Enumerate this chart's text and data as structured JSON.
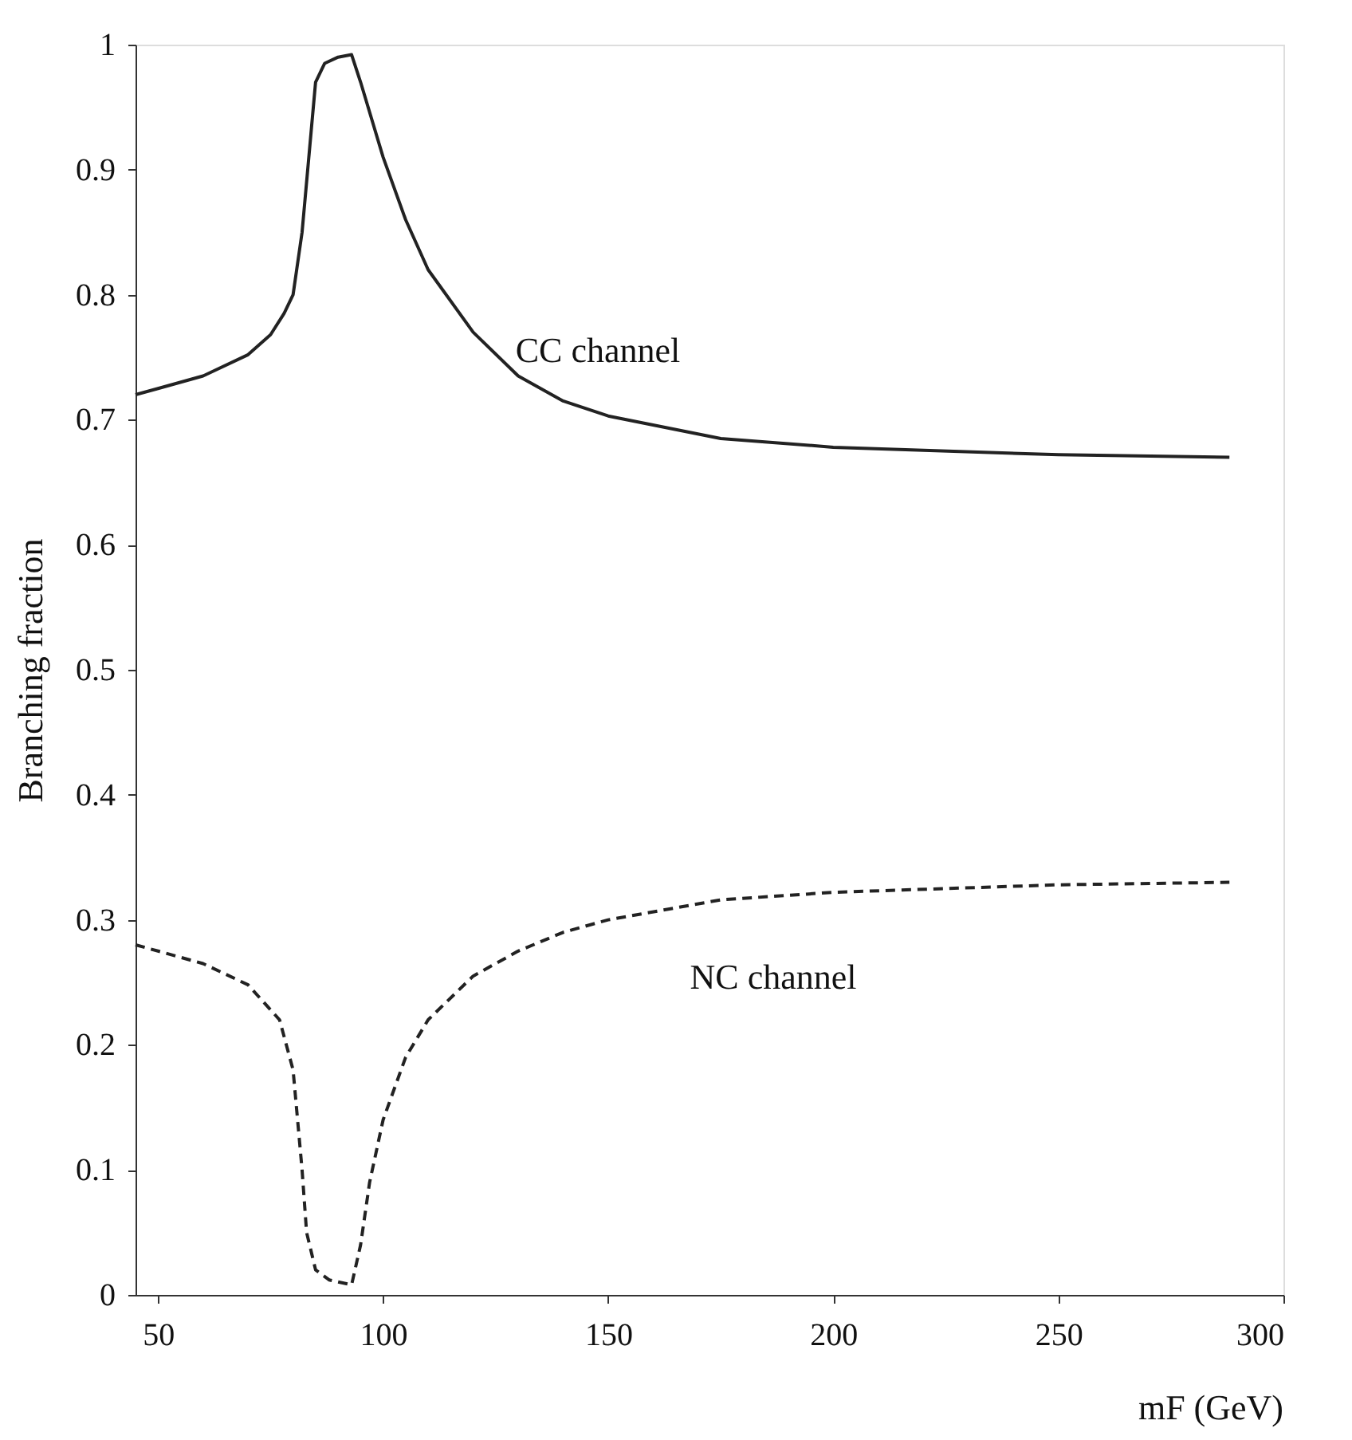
{
  "chart_data": {
    "type": "line",
    "xlabel": "mF (GeV)",
    "ylabel": "Branching fraction",
    "xlim": [
      45,
      300
    ],
    "xticks": [
      50,
      100,
      150,
      200,
      250,
      300
    ],
    "ylim": [
      0,
      1
    ],
    "yticks": [
      0,
      0.1,
      0.2,
      0.3,
      0.4,
      0.5,
      0.6,
      0.7,
      0.8,
      0.9,
      1
    ],
    "grid": false,
    "marker": "none",
    "series": [
      {
        "name": "CC channel",
        "color": "#222222",
        "line_style": "solid",
        "x": [
          45,
          50,
          60,
          70,
          75,
          78,
          80,
          82,
          84,
          85,
          87,
          90,
          93,
          95,
          100,
          105,
          110,
          120,
          130,
          140,
          150,
          175,
          200,
          250,
          288
        ],
        "values": [
          0.72,
          0.725,
          0.735,
          0.752,
          0.768,
          0.785,
          0.8,
          0.85,
          0.93,
          0.97,
          0.985,
          0.99,
          0.992,
          0.97,
          0.91,
          0.86,
          0.82,
          0.77,
          0.735,
          0.715,
          0.703,
          0.685,
          0.678,
          0.672,
          0.67
        ]
      },
      {
        "name": "NC channel",
        "color": "#222222",
        "line_style": "dashed",
        "x": [
          45,
          50,
          60,
          70,
          77,
          80,
          82,
          83,
          85,
          88,
          93,
          95,
          97,
          100,
          105,
          110,
          120,
          130,
          140,
          150,
          175,
          200,
          250,
          288
        ],
        "values": [
          0.28,
          0.275,
          0.265,
          0.248,
          0.22,
          0.18,
          0.1,
          0.05,
          0.02,
          0.012,
          0.008,
          0.04,
          0.09,
          0.14,
          0.19,
          0.22,
          0.255,
          0.275,
          0.29,
          0.3,
          0.316,
          0.322,
          0.328,
          0.33
        ]
      }
    ]
  }
}
